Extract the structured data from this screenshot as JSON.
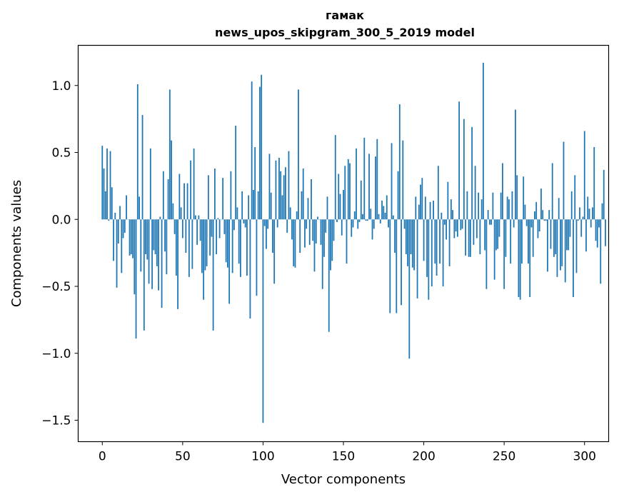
{
  "chart_data": {
    "type": "bar",
    "title": "гамак",
    "subtitle": "news_upos_skipgram_300_5_2019 model",
    "xlabel": "Vector components",
    "ylabel": "Components values",
    "xlim": [
      -15,
      315
    ],
    "ylim": [
      -1.66,
      1.3
    ],
    "xticks": [
      0,
      50,
      100,
      150,
      200,
      250,
      300
    ],
    "yticks": [
      1.0,
      0.5,
      0.0,
      -0.5,
      -1.0,
      -1.5
    ],
    "ytick_labels": [
      "1.0",
      "0.5",
      "0.0",
      "−0.5",
      "−1.0",
      "−1.5"
    ],
    "bar_color": "#1f77b4",
    "grid": false,
    "x_start": 0,
    "values": [
      0.55,
      0.38,
      0.21,
      0.53,
      -0.01,
      0.51,
      0.24,
      -0.31,
      0.05,
      -0.51,
      -0.18,
      0.1,
      -0.4,
      -0.14,
      -0.1,
      0.18,
      0.0,
      -0.27,
      -0.26,
      -0.29,
      -0.56,
      -0.89,
      1.01,
      0.17,
      -0.39,
      0.78,
      -0.83,
      -0.26,
      -0.3,
      -0.48,
      0.53,
      -0.52,
      -0.23,
      -0.26,
      -0.35,
      -0.53,
      0.02,
      -0.66,
      0.36,
      -0.24,
      -0.41,
      0.3,
      0.97,
      0.59,
      0.12,
      -0.11,
      -0.42,
      -0.67,
      0.34,
      0.09,
      -0.14,
      0.27,
      -0.25,
      0.27,
      -0.43,
      0.44,
      -0.37,
      0.53,
      0.03,
      -0.19,
      0.03,
      -0.16,
      -0.4,
      -0.6,
      -0.38,
      -0.35,
      0.33,
      -0.27,
      -0.13,
      -0.83,
      0.38,
      -0.26,
      0.01,
      -0.14,
      0.0,
      0.31,
      -0.11,
      -0.32,
      -0.36,
      -0.63,
      0.36,
      -0.4,
      -0.08,
      0.7,
      0.09,
      -0.33,
      -0.43,
      0.21,
      -0.03,
      -0.06,
      -0.42,
      0.18,
      -0.74,
      1.03,
      0.22,
      0.54,
      -0.57,
      0.21,
      0.99,
      1.08,
      -1.52,
      -0.05,
      -0.22,
      -0.07,
      0.49,
      0.2,
      -0.25,
      -0.48,
      0.44,
      -0.06,
      0.46,
      0.36,
      0.18,
      0.33,
      0.39,
      -0.1,
      0.51,
      0.09,
      -0.15,
      -0.35,
      -0.36,
      0.06,
      0.97,
      -0.25,
      0.21,
      0.38,
      -0.21,
      -0.07,
      0.16,
      -0.19,
      0.3,
      -0.16,
      -0.39,
      -0.18,
      0.02,
      0.0,
      -0.19,
      -0.52,
      -0.28,
      -0.1,
      0.17,
      -0.84,
      -0.38,
      -0.31,
      -0.16,
      0.63,
      -0.02,
      0.34,
      0.19,
      -0.12,
      0.22,
      0.4,
      -0.33,
      0.45,
      0.42,
      -0.13,
      -0.06,
      0.06,
      0.53,
      -0.07,
      -0.02,
      0.29,
      0.04,
      0.61,
      -0.01,
      -0.01,
      0.49,
      0.08,
      -0.15,
      -0.07,
      0.47,
      0.6,
      0.04,
      -0.03,
      0.14,
      0.1,
      0.05,
      0.18,
      -0.06,
      -0.7,
      0.57,
      0.03,
      -0.25,
      -0.7,
      0.36,
      0.86,
      -0.64,
      0.59,
      -0.07,
      -0.26,
      -0.35,
      -1.04,
      -0.26,
      -0.36,
      -0.38,
      0.17,
      -0.59,
      0.11,
      0.26,
      0.31,
      -0.31,
      0.17,
      -0.43,
      -0.6,
      0.13,
      -0.5,
      0.14,
      -0.33,
      -0.42,
      0.4,
      -0.33,
      0.05,
      -0.5,
      -0.04,
      -0.15,
      0.28,
      -0.35,
      0.15,
      0.07,
      -0.14,
      -0.09,
      -0.13,
      0.88,
      -0.08,
      -0.07,
      0.75,
      -0.27,
      0.21,
      -0.28,
      -0.28,
      0.69,
      -0.19,
      0.4,
      -0.14,
      0.2,
      -0.26,
      0.15,
      1.17,
      -0.23,
      -0.52,
      0.07,
      -0.04,
      -0.04,
      0.2,
      -0.45,
      -0.23,
      -0.22,
      -0.13,
      0.2,
      0.42,
      -0.52,
      -0.28,
      0.17,
      0.15,
      -0.33,
      0.21,
      -0.06,
      0.82,
      0.33,
      -0.58,
      -0.6,
      -0.33,
      0.32,
      0.11,
      -0.05,
      -0.33,
      -0.58,
      -0.06,
      -0.28,
      0.06,
      0.13,
      -0.14,
      -0.09,
      0.23,
      0.07,
      -0.01,
      -0.01,
      -0.39,
      0.07,
      -0.22,
      0.42,
      -0.28,
      -0.26,
      -0.43,
      0.16,
      -0.38,
      -0.35,
      0.58,
      -0.47,
      -0.23,
      -0.23,
      -0.13,
      0.21,
      -0.58,
      0.33,
      -0.4,
      -0.01,
      0.09,
      -0.13,
      0.02,
      0.66,
      -0.24,
      0.17,
      0.08,
      -0.06,
      0.09,
      0.54,
      -0.16,
      -0.21,
      -0.06,
      -0.48,
      0.12,
      0.37,
      -0.2
    ]
  }
}
